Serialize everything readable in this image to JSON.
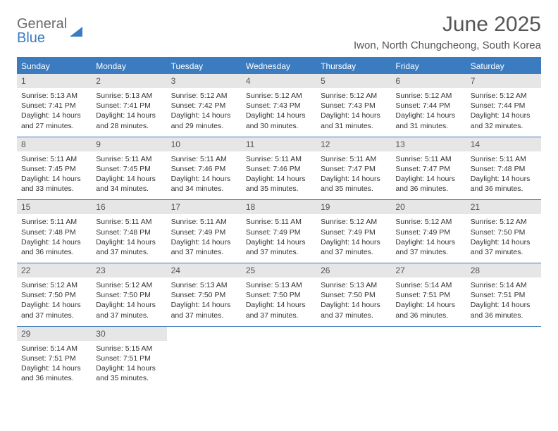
{
  "logo": {
    "top": "General",
    "bottom": "Blue"
  },
  "title": "June 2025",
  "location": "Iwon, North Chungcheong, South Korea",
  "colors": {
    "accent": "#3b7bbf",
    "daynum_bg": "#e6e6e6",
    "text": "#333333",
    "muted": "#555555"
  },
  "dow": [
    "Sunday",
    "Monday",
    "Tuesday",
    "Wednesday",
    "Thursday",
    "Friday",
    "Saturday"
  ],
  "weeks": [
    [
      {
        "n": "1",
        "sr": "Sunrise: 5:13 AM",
        "ss": "Sunset: 7:41 PM",
        "dl": "Daylight: 14 hours and 27 minutes."
      },
      {
        "n": "2",
        "sr": "Sunrise: 5:13 AM",
        "ss": "Sunset: 7:41 PM",
        "dl": "Daylight: 14 hours and 28 minutes."
      },
      {
        "n": "3",
        "sr": "Sunrise: 5:12 AM",
        "ss": "Sunset: 7:42 PM",
        "dl": "Daylight: 14 hours and 29 minutes."
      },
      {
        "n": "4",
        "sr": "Sunrise: 5:12 AM",
        "ss": "Sunset: 7:43 PM",
        "dl": "Daylight: 14 hours and 30 minutes."
      },
      {
        "n": "5",
        "sr": "Sunrise: 5:12 AM",
        "ss": "Sunset: 7:43 PM",
        "dl": "Daylight: 14 hours and 31 minutes."
      },
      {
        "n": "6",
        "sr": "Sunrise: 5:12 AM",
        "ss": "Sunset: 7:44 PM",
        "dl": "Daylight: 14 hours and 31 minutes."
      },
      {
        "n": "7",
        "sr": "Sunrise: 5:12 AM",
        "ss": "Sunset: 7:44 PM",
        "dl": "Daylight: 14 hours and 32 minutes."
      }
    ],
    [
      {
        "n": "8",
        "sr": "Sunrise: 5:11 AM",
        "ss": "Sunset: 7:45 PM",
        "dl": "Daylight: 14 hours and 33 minutes."
      },
      {
        "n": "9",
        "sr": "Sunrise: 5:11 AM",
        "ss": "Sunset: 7:45 PM",
        "dl": "Daylight: 14 hours and 34 minutes."
      },
      {
        "n": "10",
        "sr": "Sunrise: 5:11 AM",
        "ss": "Sunset: 7:46 PM",
        "dl": "Daylight: 14 hours and 34 minutes."
      },
      {
        "n": "11",
        "sr": "Sunrise: 5:11 AM",
        "ss": "Sunset: 7:46 PM",
        "dl": "Daylight: 14 hours and 35 minutes."
      },
      {
        "n": "12",
        "sr": "Sunrise: 5:11 AM",
        "ss": "Sunset: 7:47 PM",
        "dl": "Daylight: 14 hours and 35 minutes."
      },
      {
        "n": "13",
        "sr": "Sunrise: 5:11 AM",
        "ss": "Sunset: 7:47 PM",
        "dl": "Daylight: 14 hours and 36 minutes."
      },
      {
        "n": "14",
        "sr": "Sunrise: 5:11 AM",
        "ss": "Sunset: 7:48 PM",
        "dl": "Daylight: 14 hours and 36 minutes."
      }
    ],
    [
      {
        "n": "15",
        "sr": "Sunrise: 5:11 AM",
        "ss": "Sunset: 7:48 PM",
        "dl": "Daylight: 14 hours and 36 minutes."
      },
      {
        "n": "16",
        "sr": "Sunrise: 5:11 AM",
        "ss": "Sunset: 7:48 PM",
        "dl": "Daylight: 14 hours and 37 minutes."
      },
      {
        "n": "17",
        "sr": "Sunrise: 5:11 AM",
        "ss": "Sunset: 7:49 PM",
        "dl": "Daylight: 14 hours and 37 minutes."
      },
      {
        "n": "18",
        "sr": "Sunrise: 5:11 AM",
        "ss": "Sunset: 7:49 PM",
        "dl": "Daylight: 14 hours and 37 minutes."
      },
      {
        "n": "19",
        "sr": "Sunrise: 5:12 AM",
        "ss": "Sunset: 7:49 PM",
        "dl": "Daylight: 14 hours and 37 minutes."
      },
      {
        "n": "20",
        "sr": "Sunrise: 5:12 AM",
        "ss": "Sunset: 7:49 PM",
        "dl": "Daylight: 14 hours and 37 minutes."
      },
      {
        "n": "21",
        "sr": "Sunrise: 5:12 AM",
        "ss": "Sunset: 7:50 PM",
        "dl": "Daylight: 14 hours and 37 minutes."
      }
    ],
    [
      {
        "n": "22",
        "sr": "Sunrise: 5:12 AM",
        "ss": "Sunset: 7:50 PM",
        "dl": "Daylight: 14 hours and 37 minutes."
      },
      {
        "n": "23",
        "sr": "Sunrise: 5:12 AM",
        "ss": "Sunset: 7:50 PM",
        "dl": "Daylight: 14 hours and 37 minutes."
      },
      {
        "n": "24",
        "sr": "Sunrise: 5:13 AM",
        "ss": "Sunset: 7:50 PM",
        "dl": "Daylight: 14 hours and 37 minutes."
      },
      {
        "n": "25",
        "sr": "Sunrise: 5:13 AM",
        "ss": "Sunset: 7:50 PM",
        "dl": "Daylight: 14 hours and 37 minutes."
      },
      {
        "n": "26",
        "sr": "Sunrise: 5:13 AM",
        "ss": "Sunset: 7:50 PM",
        "dl": "Daylight: 14 hours and 37 minutes."
      },
      {
        "n": "27",
        "sr": "Sunrise: 5:14 AM",
        "ss": "Sunset: 7:51 PM",
        "dl": "Daylight: 14 hours and 36 minutes."
      },
      {
        "n": "28",
        "sr": "Sunrise: 5:14 AM",
        "ss": "Sunset: 7:51 PM",
        "dl": "Daylight: 14 hours and 36 minutes."
      }
    ],
    [
      {
        "n": "29",
        "sr": "Sunrise: 5:14 AM",
        "ss": "Sunset: 7:51 PM",
        "dl": "Daylight: 14 hours and 36 minutes."
      },
      {
        "n": "30",
        "sr": "Sunrise: 5:15 AM",
        "ss": "Sunset: 7:51 PM",
        "dl": "Daylight: 14 hours and 35 minutes."
      },
      null,
      null,
      null,
      null,
      null
    ]
  ]
}
